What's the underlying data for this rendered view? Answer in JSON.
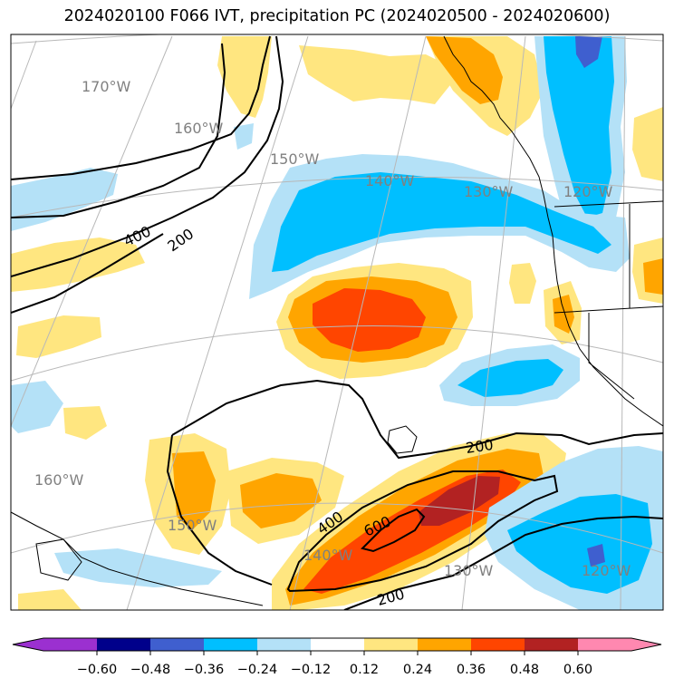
{
  "title": "2024020100 F066 IVT, precipitation PC (2024020500 - 2024020600)",
  "colors": {
    "c_n060": "#9b30d0",
    "c_n048": "#00008b",
    "c_n036": "#3f5fcf",
    "c_n024": "#00bfff",
    "c_n012": "#b4e1f7",
    "c_zero": "#ffffff",
    "c_p012": "#ffe680",
    "c_p024": "#ffa500",
    "c_p036": "#ff4500",
    "c_p048": "#b22222",
    "c_p060": "#ff88b0"
  },
  "colorbar": {
    "ticks": [
      "−0.60",
      "−0.48",
      "−0.36",
      "−0.24",
      "−0.12",
      "0.12",
      "0.24",
      "0.36",
      "0.48",
      "0.60"
    ]
  },
  "longitude_labels": {
    "top": [
      "170°W",
      "160°W",
      "150°W",
      "140°W",
      "130°W",
      "120°W"
    ],
    "bottom": [
      "160°W",
      "150°W",
      "140°W",
      "130°W",
      "120°W"
    ]
  },
  "ivt_contours": {
    "label_400_nw": "400",
    "label_200_nw": "200",
    "label_200_se": "200",
    "label_400_se": "400",
    "label_600_se": "600",
    "label_200_bottom": "200"
  }
}
